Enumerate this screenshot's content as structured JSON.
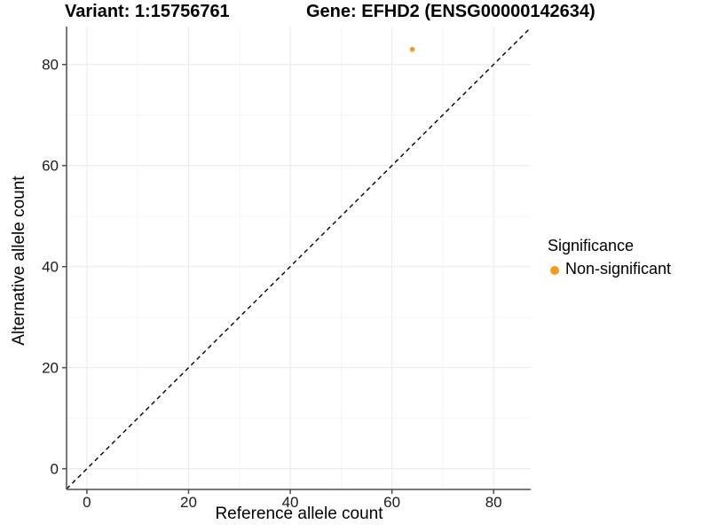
{
  "chart_data": {
    "type": "scatter",
    "titles": {
      "variant": "Variant: 1:15756761",
      "gene": "Gene: EFHD2 (ENSG00000142634)"
    },
    "xlabel": "Reference allele count",
    "ylabel": "Alternative allele count",
    "x_ticks": [
      0,
      20,
      40,
      60,
      80
    ],
    "y_ticks": [
      0,
      20,
      40,
      60,
      80
    ],
    "x_minor_ticks": [
      10,
      30,
      50,
      70
    ],
    "y_minor_ticks": [
      10,
      30,
      50,
      70
    ],
    "xlim": [
      -4.0,
      87.3
    ],
    "ylim": [
      -4.1,
      87.5
    ],
    "grid": true,
    "reference_line": {
      "type": "identity-diagonal",
      "style": "dashed",
      "color": "#000000"
    },
    "series": [
      {
        "name": "Non-significant",
        "color": "#F7991F",
        "marker": "circle",
        "points": [
          {
            "x": 64,
            "y": 83
          }
        ]
      }
    ],
    "legend": {
      "title": "Significance",
      "position": "right",
      "items": [
        {
          "label": "Non-significant",
          "color": "#F7991F",
          "marker": "circle"
        }
      ]
    },
    "colors": {
      "axis_line": "#4D4D4D",
      "grid_major": "#E9E9E9",
      "grid_minor": "#F5F5F5",
      "tick_label": "#1A1A1A",
      "background": "#FFFFFF"
    }
  }
}
